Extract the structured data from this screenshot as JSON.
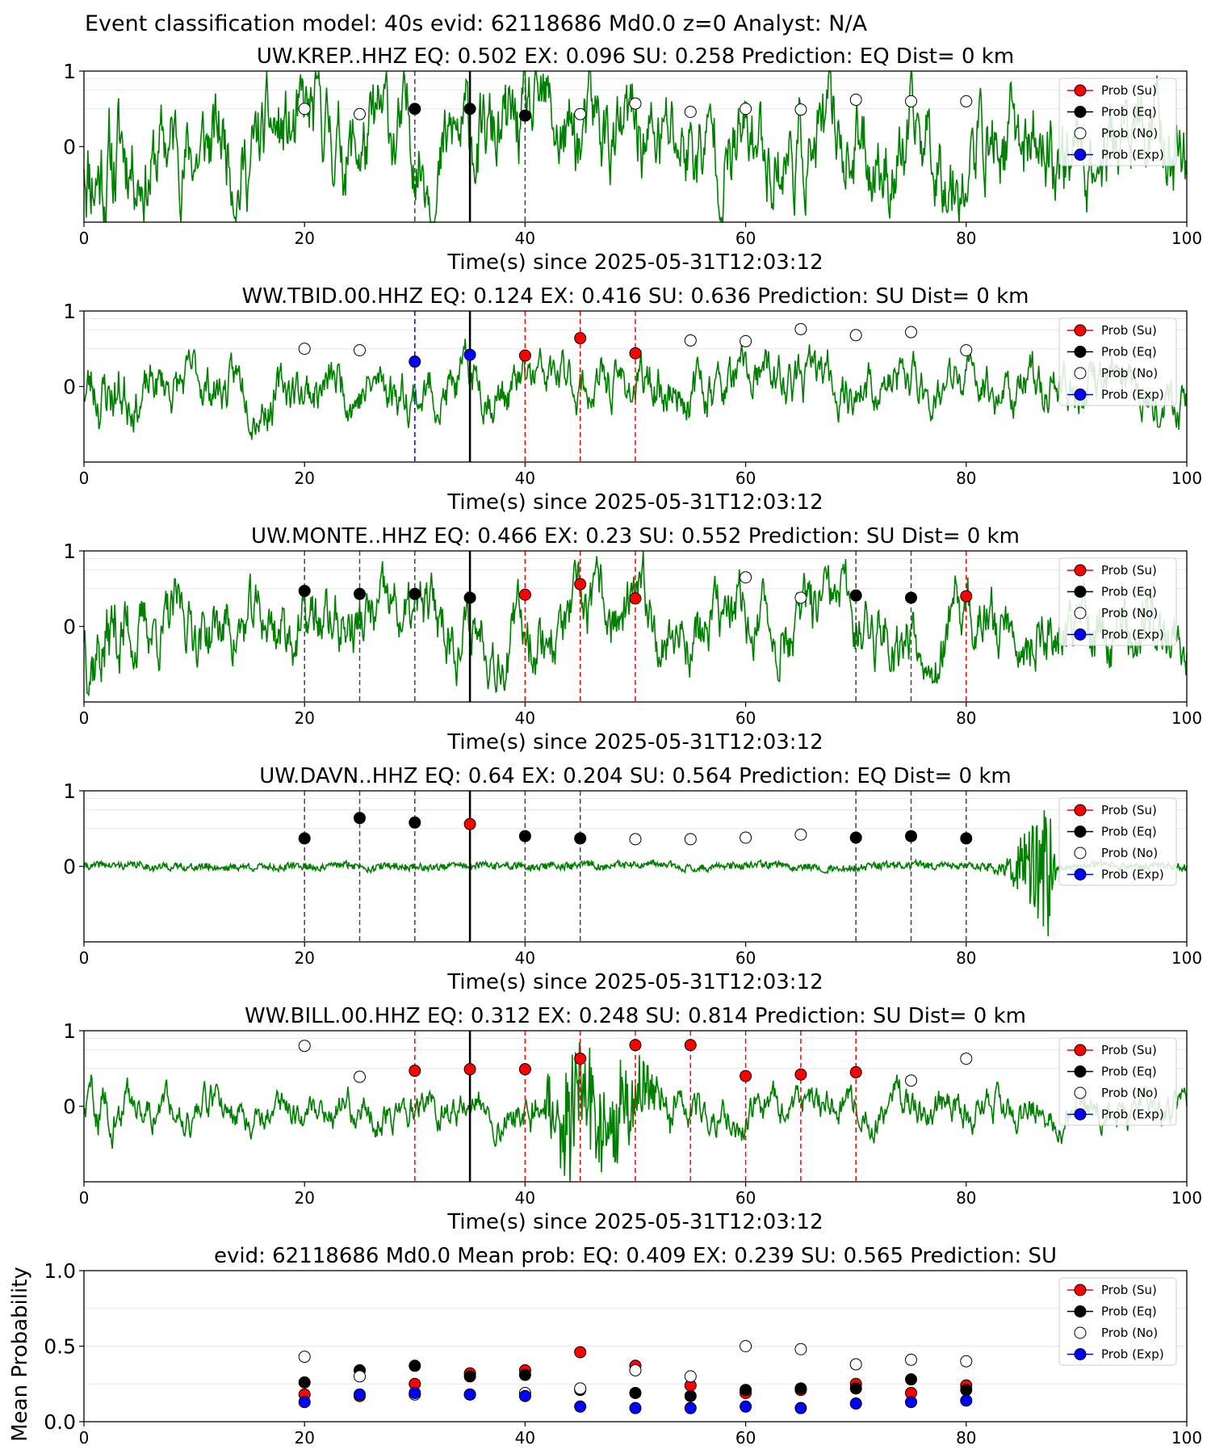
{
  "suptitle": "Event classification model: 40s evid: 62118686 Md0.0 z=0 Analyst: N/A",
  "colors": {
    "trace": "#008000",
    "su": "#ff0000",
    "eq": "#000000",
    "no": "#ffffff",
    "exp": "#0000ff",
    "grid": "#e8e8e8"
  },
  "legend": [
    "Prob (Su)",
    "Prob (Eq)",
    "Prob (No)",
    "Prob (Exp)"
  ],
  "chart_data": [
    {
      "type": "scatter",
      "title": "UW.KREP..HHZ   EQ: 0.502   EX: 0.096   SU: 0.258   Prediction: EQ    Dist= 0 km",
      "xlabel": "Time(s) since 2025-05-31T12:03:12",
      "xlim": [
        0,
        100
      ],
      "ylim": [
        -1,
        1
      ],
      "xticks": [
        "0",
        "20",
        "40",
        "60",
        "80",
        "100"
      ],
      "yticks": [
        "1",
        "0"
      ],
      "trace": {
        "style": "noisy",
        "amp": 0.42,
        "seed": 11,
        "burst": null
      },
      "origin_time": 35,
      "points": [
        {
          "t": 20,
          "p": 0.5,
          "c": "no"
        },
        {
          "t": 25,
          "p": 0.43,
          "c": "no"
        },
        {
          "t": 30,
          "p": 0.5,
          "c": "eq"
        },
        {
          "t": 35,
          "p": 0.5,
          "c": "eq"
        },
        {
          "t": 40,
          "p": 0.41,
          "c": "eq"
        },
        {
          "t": 45,
          "p": 0.43,
          "c": "no"
        },
        {
          "t": 50,
          "p": 0.57,
          "c": "no"
        },
        {
          "t": 55,
          "p": 0.46,
          "c": "no"
        },
        {
          "t": 60,
          "p": 0.5,
          "c": "no"
        },
        {
          "t": 65,
          "p": 0.49,
          "c": "no"
        },
        {
          "t": 70,
          "p": 0.62,
          "c": "no"
        },
        {
          "t": 75,
          "p": 0.6,
          "c": "no"
        },
        {
          "t": 80,
          "p": 0.6,
          "c": "no"
        }
      ]
    },
    {
      "type": "scatter",
      "title": "WW.TBID.00.HHZ   EQ: 0.124   EX: 0.416   SU: 0.636   Prediction: SU    Dist= 0 km",
      "xlabel": "Time(s) since 2025-05-31T12:03:12",
      "xlim": [
        0,
        100
      ],
      "ylim": [
        -1,
        1
      ],
      "xticks": [
        "0",
        "20",
        "40",
        "60",
        "80",
        "100"
      ],
      "yticks": [
        "1",
        "0"
      ],
      "trace": {
        "style": "noisy",
        "amp": 0.22,
        "seed": 23,
        "burst": null
      },
      "origin_time": 35,
      "points": [
        {
          "t": 20,
          "p": 0.5,
          "c": "no"
        },
        {
          "t": 25,
          "p": 0.48,
          "c": "no"
        },
        {
          "t": 30,
          "p": 0.33,
          "c": "exp"
        },
        {
          "t": 35,
          "p": 0.42,
          "c": "exp"
        },
        {
          "t": 40,
          "p": 0.41,
          "c": "su"
        },
        {
          "t": 45,
          "p": 0.64,
          "c": "su"
        },
        {
          "t": 50,
          "p": 0.44,
          "c": "su"
        },
        {
          "t": 55,
          "p": 0.61,
          "c": "no"
        },
        {
          "t": 60,
          "p": 0.6,
          "c": "no"
        },
        {
          "t": 65,
          "p": 0.76,
          "c": "no"
        },
        {
          "t": 70,
          "p": 0.68,
          "c": "no"
        },
        {
          "t": 75,
          "p": 0.72,
          "c": "no"
        },
        {
          "t": 80,
          "p": 0.48,
          "c": "no"
        }
      ]
    },
    {
      "type": "scatter",
      "title": "UW.MONTE..HHZ   EQ: 0.466   EX: 0.23   SU: 0.552   Prediction: SU    Dist= 0 km",
      "xlabel": "Time(s) since 2025-05-31T12:03:12",
      "xlim": [
        0,
        100
      ],
      "ylim": [
        -1,
        1
      ],
      "xticks": [
        "0",
        "20",
        "40",
        "60",
        "80",
        "100"
      ],
      "yticks": [
        "1",
        "0"
      ],
      "trace": {
        "style": "noisy",
        "amp": 0.3,
        "seed": 37,
        "burst": null
      },
      "origin_time": 35,
      "points": [
        {
          "t": 20,
          "p": 0.47,
          "c": "eq"
        },
        {
          "t": 25,
          "p": 0.43,
          "c": "eq"
        },
        {
          "t": 30,
          "p": 0.43,
          "c": "eq"
        },
        {
          "t": 35,
          "p": 0.38,
          "c": "eq"
        },
        {
          "t": 40,
          "p": 0.42,
          "c": "su"
        },
        {
          "t": 45,
          "p": 0.56,
          "c": "su"
        },
        {
          "t": 50,
          "p": 0.37,
          "c": "su"
        },
        {
          "t": 60,
          "p": 0.65,
          "c": "no"
        },
        {
          "t": 65,
          "p": 0.38,
          "c": "no"
        },
        {
          "t": 70,
          "p": 0.41,
          "c": "eq"
        },
        {
          "t": 75,
          "p": 0.38,
          "c": "eq"
        },
        {
          "t": 80,
          "p": 0.4,
          "c": "su"
        }
      ]
    },
    {
      "type": "scatter",
      "title": "UW.DAVN..HHZ   EQ: 0.64   EX: 0.204   SU: 0.564   Prediction: EQ    Dist= 0 km",
      "xlabel": "Time(s) since 2025-05-31T12:03:12",
      "xlim": [
        0,
        100
      ],
      "ylim": [
        -1,
        1
      ],
      "xticks": [
        "0",
        "20",
        "40",
        "60",
        "80",
        "100"
      ],
      "yticks": [
        "1",
        "0"
      ],
      "trace": {
        "style": "quiet",
        "amp": 0.06,
        "seed": 41,
        "burst": {
          "start": 81,
          "peak": 87.5,
          "end": 88.2,
          "amp": 1.0
        }
      },
      "origin_time": 35,
      "points": [
        {
          "t": 20,
          "p": 0.37,
          "c": "eq"
        },
        {
          "t": 25,
          "p": 0.64,
          "c": "eq"
        },
        {
          "t": 30,
          "p": 0.58,
          "c": "eq"
        },
        {
          "t": 35,
          "p": 0.56,
          "c": "su"
        },
        {
          "t": 40,
          "p": 0.4,
          "c": "eq"
        },
        {
          "t": 45,
          "p": 0.37,
          "c": "eq"
        },
        {
          "t": 50,
          "p": 0.36,
          "c": "no"
        },
        {
          "t": 55,
          "p": 0.36,
          "c": "no"
        },
        {
          "t": 60,
          "p": 0.38,
          "c": "no"
        },
        {
          "t": 65,
          "p": 0.42,
          "c": "no"
        },
        {
          "t": 70,
          "p": 0.38,
          "c": "eq"
        },
        {
          "t": 75,
          "p": 0.4,
          "c": "eq"
        },
        {
          "t": 80,
          "p": 0.37,
          "c": "eq"
        }
      ]
    },
    {
      "type": "scatter",
      "title": "WW.BILL.00.HHZ   EQ: 0.312   EX: 0.248   SU: 0.814   Prediction: SU    Dist= 0 km",
      "xlabel": "Time(s) since 2025-05-31T12:03:12",
      "xlim": [
        0,
        100
      ],
      "ylim": [
        -1,
        1
      ],
      "xticks": [
        "0",
        "20",
        "40",
        "60",
        "80",
        "100"
      ],
      "yticks": [
        "1",
        "0"
      ],
      "trace": {
        "style": "noisy",
        "amp": 0.16,
        "seed": 59,
        "burst": {
          "start": 39,
          "peak": 44,
          "end": 55,
          "amp": 0.85
        }
      },
      "origin_time": 35,
      "points": [
        {
          "t": 20,
          "p": 0.8,
          "c": "no"
        },
        {
          "t": 25,
          "p": 0.39,
          "c": "no"
        },
        {
          "t": 30,
          "p": 0.47,
          "c": "su"
        },
        {
          "t": 35,
          "p": 0.49,
          "c": "su"
        },
        {
          "t": 40,
          "p": 0.49,
          "c": "su"
        },
        {
          "t": 45,
          "p": 0.63,
          "c": "su"
        },
        {
          "t": 50,
          "p": 0.81,
          "c": "su"
        },
        {
          "t": 55,
          "p": 0.81,
          "c": "su"
        },
        {
          "t": 60,
          "p": 0.4,
          "c": "su"
        },
        {
          "t": 65,
          "p": 0.42,
          "c": "su"
        },
        {
          "t": 70,
          "p": 0.45,
          "c": "su"
        },
        {
          "t": 75,
          "p": 0.34,
          "c": "no"
        },
        {
          "t": 80,
          "p": 0.63,
          "c": "no"
        }
      ]
    },
    {
      "type": "scatter",
      "title": "evid: 62118686  Md0.0   Mean prob:   EQ: 0.409  EX: 0.239  SU: 0.565   Prediction: SU",
      "xlabel": "",
      "ylabel": "Mean Probability",
      "xlim": [
        0,
        100
      ],
      "ylim": [
        0,
        1
      ],
      "xticks": [
        "0",
        "20",
        "40",
        "60",
        "80",
        "100"
      ],
      "yticks": [
        "1.0",
        "0.5",
        "0.0"
      ],
      "series": [
        {
          "name": "Prob (Su)",
          "key": "su",
          "x": [
            20,
            25,
            30,
            35,
            40,
            45,
            50,
            55,
            60,
            65,
            70,
            75,
            80
          ],
          "y": [
            0.18,
            0.17,
            0.25,
            0.32,
            0.34,
            0.46,
            0.37,
            0.24,
            0.19,
            0.21,
            0.25,
            0.19,
            0.24
          ]
        },
        {
          "name": "Prob (Eq)",
          "key": "eq",
          "x": [
            20,
            25,
            30,
            35,
            40,
            45,
            50,
            55,
            60,
            65,
            70,
            75,
            80
          ],
          "y": [
            0.26,
            0.34,
            0.37,
            0.3,
            0.31,
            0.21,
            0.19,
            0.17,
            0.21,
            0.22,
            0.22,
            0.28,
            0.21
          ]
        },
        {
          "name": "Prob (No)",
          "key": "no",
          "x": [
            20,
            25,
            30,
            35,
            40,
            45,
            50,
            55,
            60,
            65,
            70,
            75,
            80
          ],
          "y": [
            0.43,
            0.3,
            0.18,
            0.18,
            0.19,
            0.22,
            0.34,
            0.3,
            0.5,
            0.48,
            0.38,
            0.41,
            0.4
          ]
        },
        {
          "name": "Prob (Exp)",
          "key": "exp",
          "x": [
            20,
            25,
            30,
            35,
            40,
            45,
            50,
            55,
            60,
            65,
            70,
            75,
            80
          ],
          "y": [
            0.13,
            0.18,
            0.19,
            0.18,
            0.17,
            0.1,
            0.09,
            0.09,
            0.1,
            0.09,
            0.12,
            0.13,
            0.14
          ]
        }
      ]
    }
  ]
}
